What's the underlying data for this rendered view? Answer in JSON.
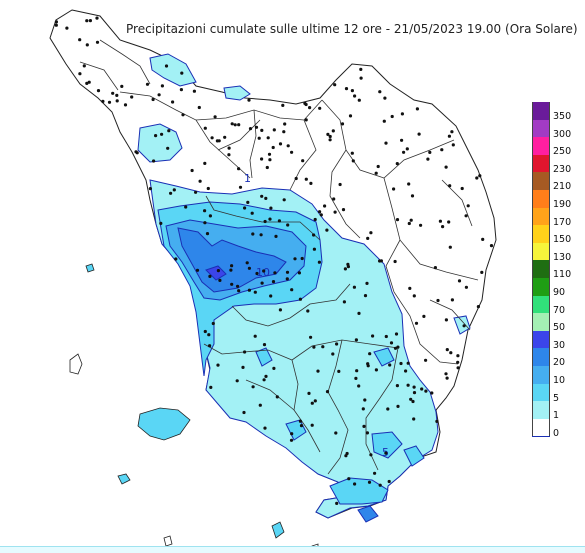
{
  "title": "Precipitazioni cumulate sulle ultime 12 ore - 21/05/2023 19.00 (Ora Solare)",
  "legend": {
    "classes": [
      {
        "label": "350",
        "color": "#6a1b9a"
      },
      {
        "label": "300",
        "color": "#a23bc4"
      },
      {
        "label": "250",
        "color": "#ff1fa0"
      },
      {
        "label": "230",
        "color": "#e0162e"
      },
      {
        "label": "210",
        "color": "#a65a23"
      },
      {
        "label": "190",
        "color": "#ff7e1a"
      },
      {
        "label": "170",
        "color": "#ffa31a"
      },
      {
        "label": "150",
        "color": "#ffd21a"
      },
      {
        "label": "130",
        "color": "#f6f53b"
      },
      {
        "label": "110",
        "color": "#1f6e12"
      },
      {
        "label": "90",
        "color": "#1f9e14"
      },
      {
        "label": "70",
        "color": "#31e07a"
      },
      {
        "label": "50",
        "color": "#a4f0b4"
      },
      {
        "label": "30",
        "color": "#3b45ea"
      },
      {
        "label": "20",
        "color": "#2e86ea"
      },
      {
        "label": "10",
        "color": "#45aef0"
      },
      {
        "label": "5",
        "color": "#5ad6f5"
      },
      {
        "label": "1",
        "color": "#a3f1f5"
      },
      {
        "label": "0",
        "color": "#ffffff"
      }
    ]
  },
  "contour_labels": [
    {
      "text": "1"
    },
    {
      "text": "10"
    },
    {
      "text": "5"
    }
  ],
  "colors": {
    "boundary": "#222222",
    "contour": "#1a2fb5",
    "station": "#111111"
  }
}
